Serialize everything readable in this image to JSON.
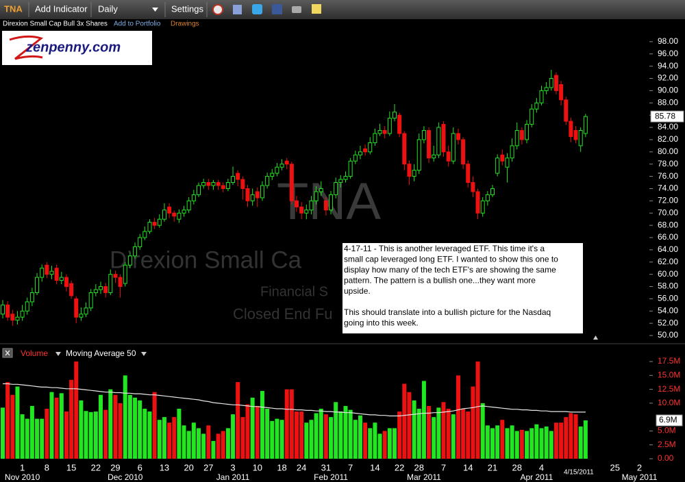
{
  "toolbar": {
    "symbol": "TNA",
    "buttons": [
      "Add Indicator",
      "Daily",
      "Settings"
    ]
  },
  "header": {
    "name": "Direxion Small Cap Bull 3x Shares",
    "add_to_portfolio": "Add to Portfolio",
    "drawings": "Drawings"
  },
  "logo": "zenpenny.com",
  "watermarks": [
    "TNA",
    "Direxion Small Ca",
    "Financial S",
    "Closed End Fu"
  ],
  "annotation": {
    "paragraphs": [
      [
        "4-17-11 - This is another leveraged ETF. This time it's a",
        "small cap leveraged long ETF. I wanted to show this one to",
        "display how many of the tech ETF's are showing the same",
        "pattern. The pattern is a bullish one...they want more",
        "upside."
      ],
      [
        "This should translate into a bullish picture for the Nasdaq",
        "going into this week."
      ]
    ]
  },
  "chart_data": {
    "type": "candlestick",
    "title": "TNA",
    "up_color": "#22e622",
    "down_color": "#ee1111",
    "ohlc": [
      [
        53.5,
        55.8,
        52.8,
        55
      ],
      [
        55,
        55.6,
        52.4,
        53
      ],
      [
        53.5,
        54.2,
        51.6,
        52.5
      ],
      [
        52.5,
        54,
        51.8,
        53
      ],
      [
        53,
        55,
        52.4,
        54
      ],
      [
        54,
        56.2,
        53.4,
        55.5
      ],
      [
        55.5,
        57.8,
        54.8,
        57
      ],
      [
        57,
        60.2,
        56.6,
        59.5
      ],
      [
        59.5,
        61.6,
        58.8,
        61
      ],
      [
        61.5,
        62,
        59.4,
        60
      ],
      [
        60,
        61.4,
        59.2,
        60.5
      ],
      [
        61,
        61.6,
        58.4,
        59
      ],
      [
        59,
        60.4,
        58.4,
        59.5
      ],
      [
        59.5,
        60,
        57.2,
        58
      ],
      [
        58.5,
        59,
        56,
        56.5
      ],
      [
        56,
        56.4,
        52,
        53
      ],
      [
        53,
        54.6,
        52.4,
        53.5
      ],
      [
        53.5,
        55.4,
        53,
        54.5
      ],
      [
        54.5,
        57.6,
        54,
        57
      ],
      [
        57,
        58.4,
        56.4,
        57.5
      ],
      [
        57.5,
        58.8,
        56.8,
        58
      ],
      [
        58,
        58.6,
        56.2,
        57
      ],
      [
        57,
        60.8,
        56.6,
        60
      ],
      [
        60,
        60.6,
        58.6,
        59.5
      ],
      [
        59.5,
        60,
        56.2,
        58
      ],
      [
        58.5,
        62,
        58,
        61.5
      ],
      [
        61.5,
        63.6,
        61,
        63
      ],
      [
        63,
        65.2,
        62.6,
        64.5
      ],
      [
        64.5,
        66.6,
        64,
        66
      ],
      [
        66,
        67.8,
        65.6,
        67
      ],
      [
        67,
        69,
        66.6,
        68.5
      ],
      [
        68.5,
        69.2,
        67.4,
        68
      ],
      [
        68,
        69.8,
        67.6,
        69
      ],
      [
        69,
        71.6,
        68.6,
        70.5
      ],
      [
        71,
        71.6,
        69.2,
        70
      ],
      [
        70,
        70.4,
        68.6,
        69.5
      ],
      [
        69,
        70.6,
        68.4,
        70
      ],
      [
        70,
        71.2,
        69.4,
        70.5
      ],
      [
        70.5,
        72.6,
        70,
        72
      ],
      [
        72,
        73.8,
        71.4,
        73
      ],
      [
        73,
        75,
        72.6,
        74.5
      ],
      [
        74.5,
        75.6,
        74,
        75
      ],
      [
        75,
        75.6,
        73.8,
        74.5
      ],
      [
        74.5,
        75.4,
        73.8,
        75
      ],
      [
        75,
        75.4,
        73.8,
        74.5
      ],
      [
        74.5,
        75,
        73.4,
        74
      ],
      [
        74,
        75.6,
        73.6,
        75
      ],
      [
        75,
        77.6,
        74.6,
        76
      ],
      [
        76.5,
        77,
        74.4,
        75.5
      ],
      [
        75.5,
        76,
        72.2,
        74
      ],
      [
        74,
        74.6,
        71,
        72
      ],
      [
        72,
        74,
        71.2,
        73
      ],
      [
        73.5,
        74.2,
        71,
        72.5
      ],
      [
        72.5,
        75.2,
        72,
        74.5
      ],
      [
        74.5,
        76.6,
        74,
        76
      ],
      [
        76,
        77.2,
        75.4,
        76.5
      ],
      [
        76.5,
        78.2,
        76,
        77.5
      ],
      [
        77.5,
        78.8,
        77,
        78
      ],
      [
        78.5,
        79,
        77.2,
        78
      ],
      [
        78,
        78.4,
        71.4,
        72
      ],
      [
        72,
        72.8,
        70.2,
        71
      ],
      [
        71,
        71.8,
        69,
        70
      ],
      [
        70,
        71.4,
        69,
        70.5
      ],
      [
        70.5,
        72.8,
        69.8,
        72
      ],
      [
        72,
        74.4,
        71.4,
        73.5
      ],
      [
        73.5,
        75.2,
        72.8,
        74
      ],
      [
        72,
        72.6,
        69.6,
        70.5
      ],
      [
        70.5,
        73.6,
        69.8,
        73
      ],
      [
        73,
        75.8,
        72.4,
        75
      ],
      [
        75,
        76.2,
        74.2,
        75.5
      ],
      [
        75.5,
        76.8,
        75,
        76
      ],
      [
        76,
        79,
        75.6,
        78.5
      ],
      [
        78.5,
        80.2,
        78,
        79.5
      ],
      [
        79.5,
        81,
        78.8,
        80
      ],
      [
        80.5,
        81.2,
        79.4,
        80
      ],
      [
        80,
        82.4,
        79.6,
        81.5
      ],
      [
        81.5,
        83.8,
        81,
        83
      ],
      [
        83,
        84.6,
        82.6,
        83.5
      ],
      [
        83.5,
        84.2,
        82.2,
        83
      ],
      [
        83,
        86.6,
        82.6,
        85.5
      ],
      [
        85.5,
        87.8,
        85,
        86.5
      ],
      [
        86,
        86.4,
        82.4,
        83
      ],
      [
        83,
        83.4,
        77,
        78
      ],
      [
        78,
        78.6,
        74.6,
        76
      ],
      [
        76,
        78,
        75.2,
        77
      ],
      [
        77,
        83,
        76.4,
        82
      ],
      [
        82,
        84.2,
        81.4,
        83.5
      ],
      [
        83.5,
        84,
        78.2,
        79
      ],
      [
        79,
        81,
        78.4,
        79.5
      ],
      [
        79.5,
        84.8,
        79,
        84
      ],
      [
        84.5,
        85,
        79.2,
        80
      ],
      [
        80,
        81,
        77.6,
        78.5
      ],
      [
        78.5,
        84,
        78,
        83
      ],
      [
        83,
        83.8,
        81.2,
        82
      ],
      [
        82,
        82.4,
        77.2,
        78
      ],
      [
        78,
        78.6,
        74.2,
        75
      ],
      [
        75,
        76,
        72.6,
        73.5
      ],
      [
        73.5,
        74,
        69,
        70
      ],
      [
        70,
        72.6,
        69.4,
        72
      ],
      [
        72,
        73.6,
        71.2,
        73
      ],
      [
        73,
        74.6,
        72.6,
        74
      ],
      [
        76.5,
        79.6,
        76,
        79
      ],
      [
        79.5,
        80.4,
        77.8,
        78.5
      ],
      [
        77.5,
        79.8,
        75,
        79
      ],
      [
        79,
        82.2,
        78.4,
        81
      ],
      [
        81,
        84.8,
        80.4,
        83.5
      ],
      [
        83.5,
        84,
        81.2,
        82
      ],
      [
        82,
        85.2,
        81.4,
        84.5
      ],
      [
        84.5,
        87.8,
        84,
        87
      ],
      [
        87,
        88.8,
        86.4,
        88
      ],
      [
        88,
        90.8,
        87.6,
        90
      ],
      [
        90,
        91.4,
        89.4,
        90.5
      ],
      [
        90.5,
        93.4,
        90,
        92
      ],
      [
        92.5,
        93,
        89.4,
        90
      ],
      [
        91,
        91.6,
        87.6,
        88.5
      ],
      [
        88.5,
        89,
        84.4,
        85
      ],
      [
        85,
        85.6,
        81.6,
        82.5
      ],
      [
        83.5,
        84.2,
        81.4,
        82
      ],
      [
        81,
        84,
        80,
        83.5
      ],
      [
        83,
        86.2,
        82.4,
        85.78
      ]
    ],
    "ylim": [
      49,
      100
    ],
    "yticks": [
      {
        "value": 50,
        "label": "50.00"
      },
      {
        "value": 52,
        "label": "52.00"
      },
      {
        "value": 54,
        "label": "54.00"
      },
      {
        "value": 56,
        "label": "56.00"
      },
      {
        "value": 58,
        "label": "58.00"
      },
      {
        "value": 60,
        "label": "60.00"
      },
      {
        "value": 62,
        "label": "62.00"
      },
      {
        "value": 64,
        "label": "64.00"
      },
      {
        "value": 66,
        "label": "66.00"
      },
      {
        "value": 68,
        "label": "68.00"
      },
      {
        "value": 70,
        "label": "70.00"
      },
      {
        "value": 72,
        "label": "72.00"
      },
      {
        "value": 74,
        "label": "74.00"
      },
      {
        "value": 76,
        "label": "76.00"
      },
      {
        "value": 78,
        "label": "78.00"
      },
      {
        "value": 80,
        "label": "80.00"
      },
      {
        "value": 82,
        "label": "82.00"
      },
      {
        "value": 84,
        "label": "84.00"
      },
      {
        "value": 86,
        "label": "86.00"
      },
      {
        "value": 88,
        "label": "88.00"
      },
      {
        "value": 90,
        "label": "90.00"
      },
      {
        "value": 92,
        "label": "92.00"
      },
      {
        "value": 94,
        "label": "94.00"
      },
      {
        "value": 96,
        "label": "96.00"
      },
      {
        "value": 98,
        "label": "98.00"
      }
    ],
    "last_price": {
      "value": 85.78,
      "label": "85.78"
    },
    "xticks": [
      {
        "value": 4,
        "label": "1"
      },
      {
        "value": 9,
        "label": "8"
      },
      {
        "value": 14,
        "label": "15"
      },
      {
        "value": 19,
        "label": "22"
      },
      {
        "value": 23,
        "label": "29"
      },
      {
        "value": 28,
        "label": "6"
      },
      {
        "value": 33,
        "label": "13"
      },
      {
        "value": 38,
        "label": "20"
      },
      {
        "value": 42,
        "label": "27"
      },
      {
        "value": 47,
        "label": "3"
      },
      {
        "value": 52,
        "label": "10"
      },
      {
        "value": 57,
        "label": "18"
      },
      {
        "value": 61,
        "label": "24"
      },
      {
        "value": 66,
        "label": "31"
      },
      {
        "value": 71,
        "label": "7"
      },
      {
        "value": 76,
        "label": "14"
      },
      {
        "value": 81,
        "label": "22"
      },
      {
        "value": 85,
        "label": "28"
      },
      {
        "value": 90,
        "label": "7"
      },
      {
        "value": 95,
        "label": "14"
      },
      {
        "value": 100,
        "label": "21"
      },
      {
        "value": 105,
        "label": "28"
      },
      {
        "value": 110,
        "label": "4"
      },
      {
        "value": 125,
        "label": "25"
      },
      {
        "value": 130,
        "label": "2"
      }
    ],
    "month_ticks": [
      {
        "value": 4,
        "label": "Nov 2010"
      },
      {
        "value": 25,
        "label": "Dec 2010"
      },
      {
        "value": 47,
        "label": "Jan 2011"
      },
      {
        "value": 67,
        "label": "Feb 2011"
      },
      {
        "value": 86,
        "label": "Mar 2011"
      },
      {
        "value": 109,
        "label": "Apr 2011"
      },
      {
        "value": 130,
        "label": "May 2011"
      }
    ],
    "last_date": {
      "value": 119,
      "label": "4/15/2011"
    },
    "volume": {
      "name": "Volume",
      "values": [
        9.2,
        13.8,
        11.5,
        13.0,
        8.0,
        7.2,
        9.5,
        7.2,
        7.2,
        9.0,
        12.0,
        11.0,
        11.8,
        8.5,
        14.2,
        17.5,
        10.5,
        8.6,
        8.4,
        8.5,
        11.5,
        8.8,
        12.5,
        11.5,
        10.0,
        15.0,
        11.5,
        11.0,
        10.5,
        9.0,
        8.5,
        12.0,
        7.0,
        7.5,
        6.5,
        7.5,
        9.0,
        6.0,
        5.0,
        6.5,
        5.5,
        4.5,
        6.0,
        3.2,
        4.5,
        5.0,
        5.5,
        8.0,
        13.8,
        7.5,
        9.8,
        11.0,
        9.5,
        12.2,
        9.0,
        6.8,
        7.2,
        7.0,
        12.5,
        12.5,
        8.5,
        8.5,
        6.5,
        7.0,
        8.2,
        9.0,
        8.0,
        7.5,
        10.2,
        8.5,
        9.5,
        8.8,
        7.0,
        7.8,
        6.5,
        5.5,
        6.5,
        4.5,
        5.0,
        5.5,
        5.5,
        8.5,
        13.5,
        12.0,
        10.5,
        9.0,
        14.0,
        9.5,
        7.5,
        9.2,
        10.2,
        9.0,
        8.0,
        15.0,
        9.0,
        8.5,
        13.0,
        17.5,
        10.0,
        6.0,
        5.5,
        6.0,
        7.0,
        5.5,
        6.0,
        5.0,
        5.2,
        5.0,
        5.5,
        6.2,
        5.5,
        5.8,
        5.0,
        6.5,
        6.5,
        7.5,
        8.2,
        8.0,
        5.8,
        6.9
      ],
      "ylim": [
        0,
        18
      ],
      "yticks": [
        {
          "value": 0,
          "label": "0.00"
        },
        {
          "value": 2.5,
          "label": "2.5M"
        },
        {
          "value": 5,
          "label": "5.0M"
        },
        {
          "value": 10,
          "label": "10.0M"
        },
        {
          "value": 12.5,
          "label": "12.5M"
        },
        {
          "value": 15,
          "label": "15.0M"
        },
        {
          "value": 17.5,
          "label": "17.5M"
        }
      ],
      "last": {
        "value": 6.9,
        "label": "6.9M"
      }
    },
    "moving_average": {
      "name": "Moving Average 50",
      "color": "#e8e8e8",
      "values": [
        13.5,
        13.5,
        13.4,
        13.4,
        13.3,
        13.2,
        13.1,
        13.0,
        12.9,
        12.9,
        12.8,
        12.8,
        12.7,
        12.6,
        12.6,
        12.6,
        12.5,
        12.4,
        12.3,
        12.2,
        12.1,
        12.0,
        12.0,
        11.9,
        11.9,
        11.8,
        11.8,
        11.7,
        11.7,
        11.6,
        11.5,
        11.5,
        11.4,
        11.3,
        11.2,
        11.1,
        11.0,
        10.9,
        10.8,
        10.7,
        10.6,
        10.4,
        10.3,
        10.1,
        10.0,
        9.9,
        9.8,
        9.7,
        9.7,
        9.6,
        9.5,
        9.4,
        9.4,
        9.3,
        9.2,
        9.1,
        9.0,
        9.0,
        8.9,
        8.9,
        8.8,
        8.8,
        8.7,
        8.7,
        8.6,
        8.6,
        8.5,
        8.5,
        8.4,
        8.4,
        8.3,
        8.3,
        8.2,
        8.1,
        8.0,
        7.9,
        7.9,
        7.8,
        7.8,
        7.7,
        7.7,
        7.7,
        7.8,
        7.9,
        8.0,
        8.1,
        8.2,
        8.2,
        8.3,
        8.3,
        8.4,
        8.5,
        8.6,
        8.8,
        9.0,
        9.1,
        9.2,
        9.4,
        9.5,
        9.4,
        9.3,
        9.2,
        9.1,
        9.0,
        8.9,
        8.9,
        8.8,
        8.8,
        8.7,
        8.7,
        8.6,
        8.6,
        8.5,
        8.5,
        8.5,
        8.5,
        8.4,
        8.4,
        8.4,
        8.4
      ]
    }
  }
}
